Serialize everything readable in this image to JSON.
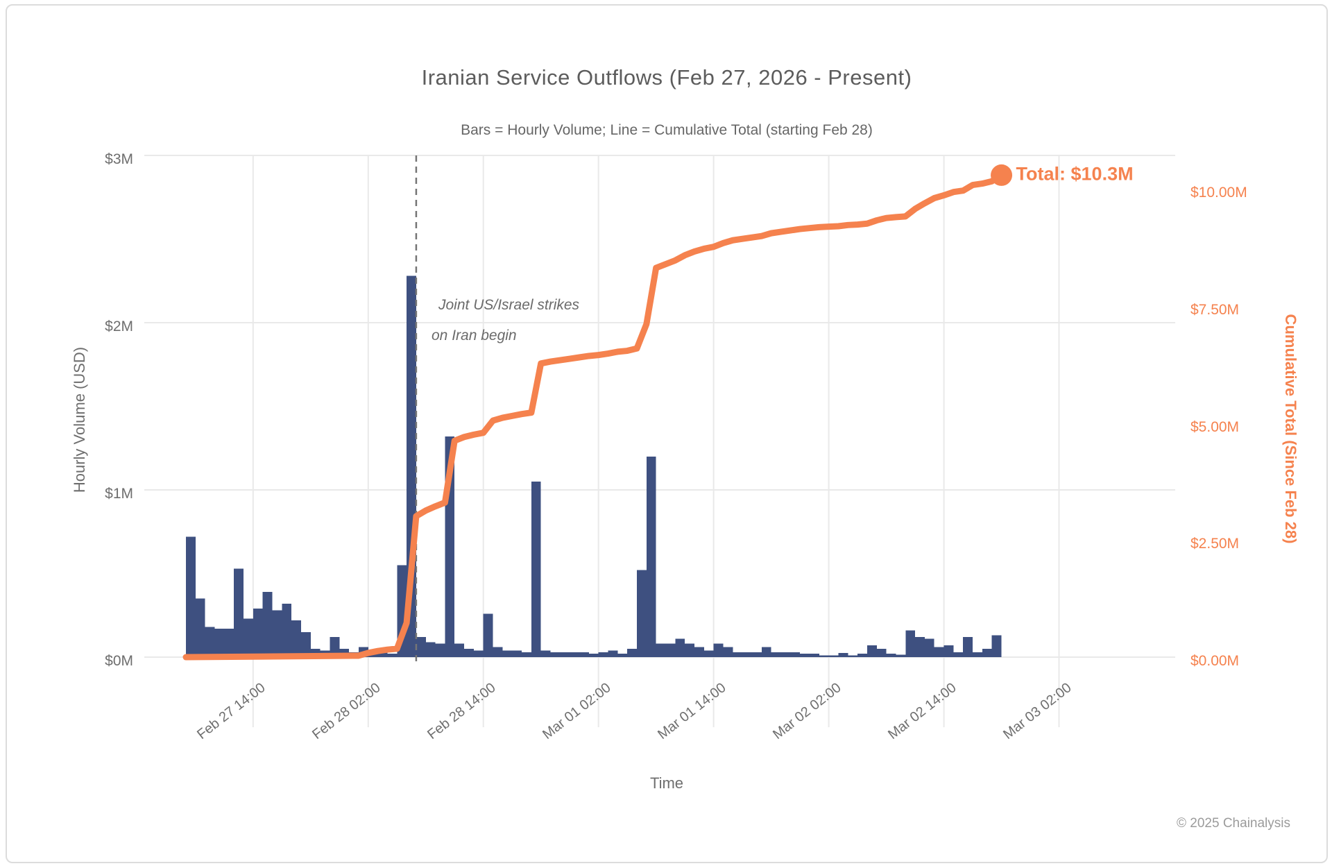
{
  "header": {
    "title": "Iranian Service Outflows (Feb 27, 2026 - Present)",
    "subtitle": "Bars = Hourly Volume; Line = Cumulative Total (starting Feb 28)"
  },
  "left_axis": {
    "title": "Hourly Volume (USD)",
    "ticks": [
      {
        "label": "$0M",
        "value": 0
      },
      {
        "label": "$1M",
        "value": 1
      },
      {
        "label": "$2M",
        "value": 2
      },
      {
        "label": "$3M",
        "value": 3
      }
    ]
  },
  "right_axis": {
    "title": "Cumulative Total (Since Feb 28)",
    "ticks": [
      {
        "label": "$0.00M",
        "value": 0
      },
      {
        "label": "$2.50M",
        "value": 2.5
      },
      {
        "label": "$5.00M",
        "value": 5
      },
      {
        "label": "$7.50M",
        "value": 7.5
      },
      {
        "label": "$10.00M",
        "value": 10
      }
    ]
  },
  "x_axis": {
    "title": "Time",
    "ticks": [
      "Feb 27 14:00",
      "Feb 28 02:00",
      "Feb 28 14:00",
      "Mar 01 02:00",
      "Mar 01 14:00",
      "Mar 02 02:00",
      "Mar 02 14:00",
      "Mar 03 02:00"
    ]
  },
  "annotation": {
    "line1": "Joint US/Israel strikes",
    "line2": "on Iran begin"
  },
  "total_label": "Total: $10.3M",
  "copyright": "© 2025 Chainalysis",
  "colors": {
    "bar": "#3e5080",
    "line": "#f5824e",
    "grid": "#e9e9e9",
    "event_line": "#757575",
    "text": "#6e6e6e"
  },
  "chart_data": {
    "type": "bar+line",
    "title": "Iranian Service Outflows (Feb 27, 2026 - Present)",
    "bar_series_name": "Hourly Volume (USD, $M)",
    "line_series_name": "Cumulative Total since Feb 28 ($M)",
    "x_start": "Feb 27 07:00",
    "x_step_hours": 1,
    "x_tick_labels": [
      "Feb 27 14:00",
      "Feb 28 02:00",
      "Feb 28 14:00",
      "Mar 01 02:00",
      "Mar 01 14:00",
      "Mar 02 02:00",
      "Mar 02 14:00",
      "Mar 03 02:00"
    ],
    "x_first_tick_hour_index": 7,
    "x_tick_interval_hours": 12,
    "ylim_left": [
      0,
      3
    ],
    "ylim_right": [
      0,
      10.7
    ],
    "grid": true,
    "values_musd": [
      0.72,
      0.35,
      0.18,
      0.17,
      0.17,
      0.53,
      0.23,
      0.29,
      0.39,
      0.28,
      0.32,
      0.22,
      0.15,
      0.05,
      0.04,
      0.12,
      0.05,
      0.03,
      0.06,
      0.04,
      0.03,
      0.02,
      0.55,
      2.28,
      0.12,
      0.09,
      0.08,
      1.32,
      0.08,
      0.05,
      0.04,
      0.26,
      0.06,
      0.04,
      0.04,
      0.03,
      1.05,
      0.04,
      0.03,
      0.03,
      0.03,
      0.03,
      0.02,
      0.03,
      0.04,
      0.02,
      0.05,
      0.52,
      1.2,
      0.08,
      0.08,
      0.11,
      0.08,
      0.06,
      0.04,
      0.08,
      0.06,
      0.03,
      0.03,
      0.03,
      0.06,
      0.03,
      0.03,
      0.03,
      0.02,
      0.02,
      0.01,
      0.01,
      0.025,
      0.01,
      0.02,
      0.07,
      0.05,
      0.02,
      0.015,
      0.16,
      0.12,
      0.11,
      0.06,
      0.07,
      0.03,
      0.12,
      0.03,
      0.05,
      0.13
    ],
    "cumulative_start_index": 17,
    "cumulative_start_time": "Feb 28 00:00",
    "cumulative_total_musd": 10.3,
    "event": {
      "time": "Feb 28 07:00",
      "hour_index": 24,
      "label": "Joint US/Israel strikes on Iran begin"
    }
  }
}
